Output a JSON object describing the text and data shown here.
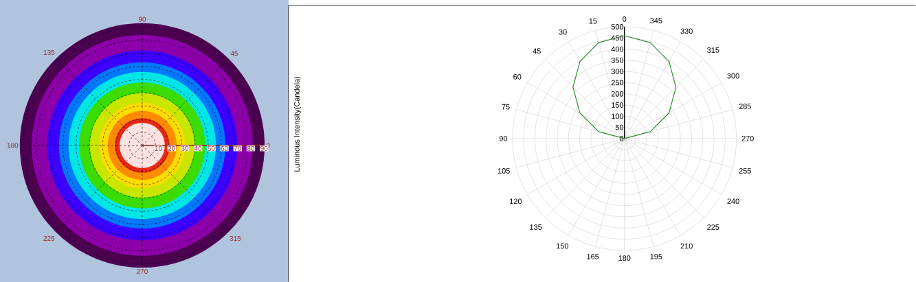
{
  "chart_data": [
    {
      "type": "radar",
      "categories": [
        "90",
        "45",
        "0",
        "315",
        "270",
        "225",
        "180",
        "135"
      ],
      "ylim": [
        0,
        90
      ],
      "yticks": [
        10,
        20,
        30,
        40,
        50,
        60,
        70,
        80,
        90
      ],
      "grid": true
    },
    {
      "type": "radar",
      "ylabel": "Luminous Intensity(Candela)",
      "categories": [
        "0",
        "345",
        "330",
        "315",
        "300",
        "285",
        "270",
        "255",
        "240",
        "225",
        "210",
        "195",
        "180",
        "165",
        "150",
        "135",
        "120",
        "105",
        "90",
        "75",
        "60",
        "45",
        "30",
        "15"
      ],
      "series": [
        {
          "color": "#2e8b2e",
          "values": [
            460,
            444,
            398,
            325,
            230,
            119,
            0,
            0,
            0,
            0,
            0,
            0,
            0,
            0,
            0,
            0,
            0,
            0,
            0,
            119,
            230,
            325,
            398,
            444
          ]
        }
      ],
      "ylim": [
        0,
        500
      ],
      "yticks": [
        0,
        50,
        100,
        150,
        200,
        250,
        300,
        350,
        400,
        450,
        500
      ],
      "grid": true
    }
  ]
}
